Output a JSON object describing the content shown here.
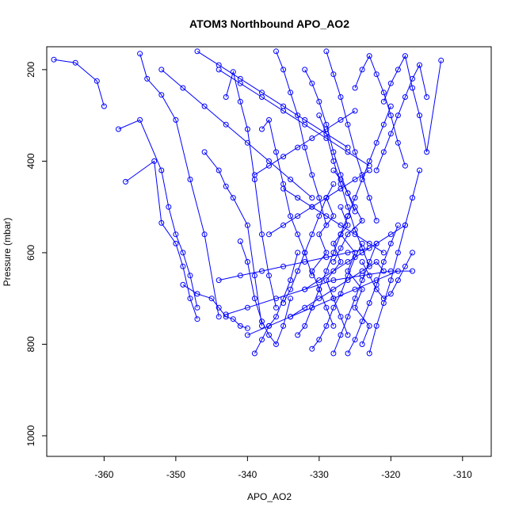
{
  "chart_data": {
    "type": "scatter",
    "title": "ATOM3 Northbound APO_AO2",
    "xlabel": "APO_AO2",
    "ylabel": "Pressure (mbar)",
    "xlim": [
      -368,
      -306
    ],
    "ylim": [
      1045,
      150
    ],
    "x_ticks": [
      -360,
      -350,
      -340,
      -330,
      -320,
      -310
    ],
    "y_ticks": [
      200,
      400,
      600,
      800,
      1000
    ],
    "x_tick_labels": [
      "-360",
      "-350",
      "-340",
      "-330",
      "-320",
      "-310"
    ],
    "y_tick_labels": [
      "200",
      "400",
      "600",
      "800",
      "1000"
    ],
    "line_color": "#0000ff",
    "marker": "open-circle",
    "grid": false,
    "series": [
      {
        "x": [
          -367,
          -364,
          -361,
          -360
        ],
        "y": [
          178,
          185,
          225,
          280
        ]
      },
      {
        "x": [
          -358,
          -355,
          -352,
          -351,
          -350,
          -349,
          -348,
          -347
        ],
        "y": [
          330,
          310,
          420,
          500,
          560,
          600,
          650,
          720
        ]
      },
      {
        "x": [
          -357,
          -353,
          -352,
          -350,
          -349,
          -348,
          -347
        ],
        "y": [
          445,
          400,
          535,
          580,
          630,
          700,
          745
        ]
      },
      {
        "x": [
          -355,
          -354,
          -352,
          -350,
          -348,
          -346,
          -344
        ],
        "y": [
          165,
          220,
          255,
          310,
          440,
          560,
          740
        ]
      },
      {
        "x": [
          -349,
          -347,
          -345,
          -344,
          -343,
          -342,
          -341,
          -340
        ],
        "y": [
          670,
          690,
          700,
          720,
          740,
          745,
          760,
          765
        ]
      },
      {
        "x": [
          -346,
          -344,
          -343,
          -342,
          -340,
          -339,
          -338
        ],
        "y": [
          380,
          420,
          455,
          480,
          540,
          650,
          760
        ]
      },
      {
        "x": [
          -343,
          -342,
          -341,
          -340,
          -339,
          -338,
          -337,
          -336
        ],
        "y": [
          260,
          205,
          270,
          330,
          440,
          560,
          650,
          720
        ]
      },
      {
        "x": [
          -341,
          -340,
          -339,
          -338,
          -337,
          -336,
          -335,
          -334
        ],
        "y": [
          575,
          620,
          700,
          750,
          780,
          800,
          760,
          700
        ]
      },
      {
        "x": [
          -339,
          -338,
          -337,
          -336,
          -335,
          -334,
          -333
        ],
        "y": [
          820,
          790,
          760,
          740,
          700,
          660,
          600
        ]
      },
      {
        "x": [
          -338,
          -337,
          -336,
          -335,
          -334,
          -333,
          -332,
          -331
        ],
        "y": [
          330,
          310,
          380,
          450,
          520,
          560,
          600,
          650
        ]
      },
      {
        "x": [
          -336,
          -335,
          -334,
          -333,
          -332,
          -331,
          -330,
          -329
        ],
        "y": [
          160,
          200,
          250,
          300,
          370,
          430,
          480,
          540
        ]
      },
      {
        "x": [
          -335,
          -334,
          -333,
          -332,
          -331,
          -330,
          -329,
          -328
        ],
        "y": [
          710,
          680,
          640,
          600,
          560,
          520,
          480,
          450
        ]
      },
      {
        "x": [
          -333,
          -332,
          -331,
          -330,
          -329,
          -328,
          -327,
          -326
        ],
        "y": [
          780,
          760,
          720,
          680,
          640,
          600,
          560,
          520
        ]
      },
      {
        "x": [
          -332,
          -331,
          -330,
          -329,
          -328,
          -327,
          -326,
          -325
        ],
        "y": [
          200,
          230,
          270,
          320,
          380,
          430,
          470,
          510
        ]
      },
      {
        "x": [
          -331,
          -330,
          -329,
          -328,
          -327,
          -326,
          -325,
          -324
        ],
        "y": [
          810,
          790,
          760,
          720,
          690,
          650,
          610,
          580
        ]
      },
      {
        "x": [
          -330,
          -329,
          -328,
          -327,
          -326,
          -325,
          -324,
          -323
        ],
        "y": [
          300,
          340,
          400,
          450,
          500,
          550,
          590,
          630
        ]
      },
      {
        "x": [
          -329,
          -328,
          -327,
          -326,
          -325,
          -324,
          -323,
          -322
        ],
        "y": [
          160,
          210,
          260,
          320,
          380,
          430,
          480,
          530
        ]
      },
      {
        "x": [
          -328,
          -327,
          -326,
          -325,
          -324,
          -323,
          -322
        ],
        "y": [
          820,
          780,
          740,
          700,
          660,
          620,
          580
        ]
      },
      {
        "x": [
          -327,
          -326,
          -325,
          -324,
          -323,
          -322,
          -321,
          -320
        ],
        "y": [
          560,
          520,
          480,
          440,
          400,
          360,
          320,
          280
        ]
      },
      {
        "x": [
          -326,
          -325,
          -324,
          -323,
          -322,
          -321,
          -320,
          -319
        ],
        "y": [
          820,
          790,
          750,
          710,
          670,
          620,
          580,
          540
        ]
      },
      {
        "x": [
          -325,
          -324,
          -323,
          -322,
          -321,
          -320,
          -319,
          -318
        ],
        "y": [
          240,
          200,
          170,
          210,
          250,
          300,
          360,
          410
        ]
      },
      {
        "x": [
          -324,
          -323,
          -322,
          -321,
          -320,
          -319,
          -318,
          -317
        ],
        "y": [
          620,
          650,
          680,
          700,
          690,
          660,
          630,
          600
        ]
      },
      {
        "x": [
          -323,
          -322,
          -321,
          -320,
          -319,
          -318,
          -317,
          -316
        ],
        "y": [
          820,
          760,
          710,
          660,
          600,
          540,
          480,
          420
        ]
      },
      {
        "x": [
          -322,
          -321,
          -320,
          -319,
          -318,
          -317,
          -316,
          -315
        ],
        "y": [
          420,
          380,
          340,
          300,
          260,
          220,
          190,
          260
        ]
      },
      {
        "x": [
          -321,
          -320,
          -319,
          -318,
          -317,
          -316,
          -315,
          -313
        ],
        "y": [
          270,
          230,
          200,
          170,
          240,
          300,
          380,
          180
        ]
      },
      {
        "x": [
          -327,
          -326,
          -328,
          -327,
          -329,
          -328,
          -327,
          -326
        ],
        "y": [
          500,
          540,
          580,
          620,
          660,
          700,
          740,
          780
        ]
      },
      {
        "x": [
          -329,
          -328,
          -330,
          -329,
          -331,
          -330,
          -329,
          -328
        ],
        "y": [
          480,
          520,
          560,
          600,
          640,
          680,
          720,
          760
        ]
      },
      {
        "x": [
          -326,
          -327,
          -325,
          -326,
          -324,
          -325,
          -323,
          -324
        ],
        "y": [
          520,
          560,
          600,
          640,
          680,
          720,
          760,
          800
        ]
      },
      {
        "x": [
          -328,
          -327,
          -326,
          -325,
          -324,
          -326,
          -327,
          -328
        ],
        "y": [
          420,
          440,
          470,
          500,
          530,
          560,
          590,
          620
        ]
      },
      {
        "x": [
          -334,
          -332,
          -330,
          -328,
          -326,
          -324,
          -322,
          -321
        ],
        "y": [
          740,
          720,
          700,
          680,
          660,
          640,
          620,
          640
        ]
      },
      {
        "x": [
          -340,
          -337,
          -334,
          -331,
          -328,
          -325,
          -322,
          -319
        ],
        "y": [
          780,
          760,
          740,
          720,
          700,
          680,
          660,
          640
        ]
      },
      {
        "x": [
          -343,
          -340,
          -336,
          -332,
          -328,
          -324,
          -320,
          -317
        ],
        "y": [
          735,
          720,
          700,
          680,
          660,
          650,
          640,
          640
        ]
      },
      {
        "x": [
          -344,
          -341,
          -338,
          -335,
          -332,
          -329,
          -326,
          -323
        ],
        "y": [
          660,
          650,
          640,
          630,
          620,
          610,
          600,
          590
        ]
      },
      {
        "x": [
          -337,
          -335,
          -333,
          -331,
          -329,
          -327,
          -325,
          -323
        ],
        "y": [
          560,
          540,
          520,
          500,
          480,
          460,
          440,
          420
        ]
      },
      {
        "x": [
          -339,
          -337,
          -335,
          -333,
          -331,
          -329,
          -327,
          -325
        ],
        "y": [
          430,
          410,
          390,
          370,
          350,
          330,
          310,
          290
        ]
      },
      {
        "x": [
          -344,
          -341,
          -338,
          -335,
          -332,
          -329,
          -326,
          -323
        ],
        "y": [
          200,
          230,
          260,
          290,
          320,
          350,
          380,
          410
        ]
      },
      {
        "x": [
          -347,
          -344,
          -341,
          -338,
          -335,
          -332,
          -329,
          -326
        ],
        "y": [
          160,
          190,
          220,
          250,
          280,
          310,
          340,
          370
        ]
      },
      {
        "x": [
          -352,
          -349,
          -346,
          -343,
          -340,
          -337,
          -334,
          -331
        ],
        "y": [
          200,
          240,
          280,
          320,
          360,
          400,
          440,
          480
        ]
      },
      {
        "x": [
          -335,
          -333,
          -331,
          -329,
          -327,
          -325,
          -323,
          -321
        ],
        "y": [
          460,
          480,
          500,
          520,
          540,
          560,
          580,
          600
        ]
      },
      {
        "x": [
          -332,
          -330,
          -328,
          -326,
          -324,
          -322,
          -320,
          -318
        ],
        "y": [
          680,
          660,
          640,
          620,
          600,
          580,
          560,
          540
        ]
      }
    ]
  }
}
